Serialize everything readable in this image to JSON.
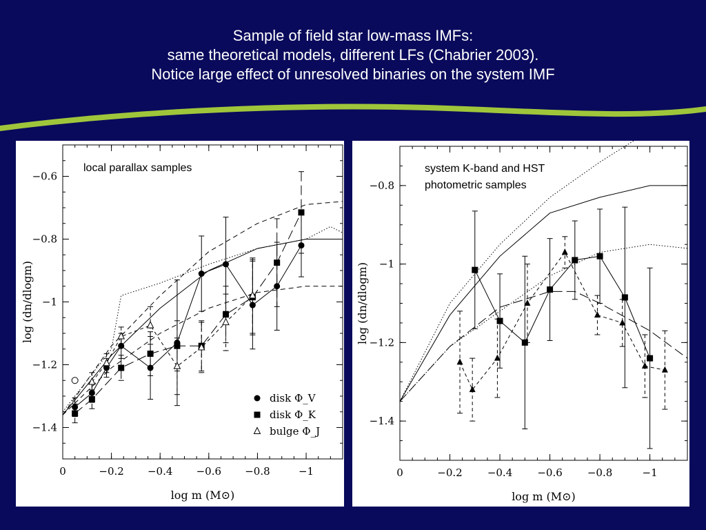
{
  "slide": {
    "title_lines": [
      "Sample of field star low-mass IMFs:",
      "same theoretical models, different LFs (Chabrier 2003).",
      "Notice large effect of unresolved binaries on the system IMF"
    ],
    "background_color": "#0a0a5c",
    "accent_color": "#9fc63b"
  },
  "chart_data": [
    {
      "type": "scatter",
      "title": "local parallax samples",
      "xlabel": "log m (M⊙)",
      "ylabel": "log (dn/dlogm)",
      "xlim": [
        0,
        -1.15
      ],
      "ylim": [
        -1.5,
        -0.5
      ],
      "xticks": [
        0,
        -0.2,
        -0.4,
        -0.6,
        -0.8,
        -1
      ],
      "xtick_labels": [
        "0",
        "−0.2",
        "−0.4",
        "−0.6",
        "−0.8",
        "−1"
      ],
      "yticks": [
        -1.4,
        -1.2,
        -1,
        -0.8,
        -0.6
      ],
      "ytick_labels": [
        "−1.4",
        "−1.2",
        "−1",
        "−0.8",
        "−0.6"
      ],
      "legend_position": "bottom-right",
      "series": [
        {
          "name": "disk Φ_V",
          "marker": "circle",
          "line": "solid",
          "x": [
            -0.05,
            -0.12,
            -0.18,
            -0.24,
            -0.36,
            -0.47,
            -0.57,
            -0.67,
            -0.78,
            -0.88,
            -0.98
          ],
          "y": [
            -1.335,
            -1.29,
            -1.21,
            -1.14,
            -1.21,
            -1.13,
            -0.91,
            -0.88,
            -1.01,
            -0.95,
            -0.82
          ],
          "yerr": [
            0.03,
            0.03,
            0.03,
            0.04,
            0.1,
            0.2,
            0.12,
            0.15,
            0.14,
            0.14,
            0.1
          ]
        },
        {
          "name": "disk Φ_K",
          "marker": "square",
          "line": "long-dash",
          "x": [
            -0.05,
            -0.12,
            -0.24,
            -0.36,
            -0.47,
            -0.57,
            -0.67,
            -0.78,
            -0.88,
            -0.98
          ],
          "y": [
            -1.355,
            -1.31,
            -1.21,
            -1.165,
            -1.14,
            -1.14,
            -1.04,
            -0.985,
            -0.875,
            -0.715
          ],
          "yerr": [
            0.03,
            0.03,
            0.04,
            0.07,
            0.08,
            0.08,
            0.09,
            0.12,
            0.14,
            0.13
          ]
        },
        {
          "name": "bulge Φ_J",
          "marker": "triangle-open",
          "line": "short-dash",
          "x": [
            -0.12,
            -0.18,
            -0.24,
            -0.36,
            -0.47,
            -0.57,
            -0.67,
            -0.78
          ],
          "y": [
            -1.255,
            -1.195,
            -1.11,
            -1.075,
            -1.205,
            -1.145,
            -1.065,
            -0.98
          ],
          "yerr": [
            0.03,
            0.03,
            0.03,
            0.06,
            0.09,
            0.08,
            0.09,
            0.12
          ]
        },
        {
          "name": "",
          "marker": "circle-open",
          "line": "none",
          "x": [
            -0.05
          ],
          "y": [
            -1.25
          ],
          "yerr": [
            0
          ]
        }
      ],
      "model_curves": [
        {
          "style": "solid",
          "x": [
            0,
            -0.2,
            -0.4,
            -0.6,
            -0.8,
            -1.0,
            -1.15
          ],
          "y": [
            -1.36,
            -1.17,
            -1.02,
            -0.9,
            -0.83,
            -0.8,
            -0.8
          ]
        },
        {
          "style": "dashed",
          "x": [
            0,
            -0.2,
            -0.4,
            -0.6,
            -0.8,
            -1.0,
            -1.15
          ],
          "y": [
            -1.36,
            -1.14,
            -0.98,
            -0.84,
            -0.75,
            -0.69,
            -0.68
          ]
        },
        {
          "style": "dashed",
          "x": [
            0,
            -0.2,
            -0.4,
            -0.6,
            -0.8,
            -1.0,
            -1.15
          ],
          "y": [
            -1.36,
            -1.21,
            -1.1,
            -1.02,
            -0.97,
            -0.95,
            -0.95
          ]
        },
        {
          "style": "dotted",
          "x": [
            0,
            -0.2,
            -0.24,
            -0.4,
            -0.6,
            -0.8,
            -1.0,
            -1.1,
            -1.15
          ],
          "y": [
            -1.35,
            -1.15,
            -0.98,
            -0.94,
            -0.88,
            -0.83,
            -0.8,
            -0.76,
            -0.78
          ]
        }
      ]
    },
    {
      "type": "scatter",
      "title": "system K-band  and HST photometric samples",
      "title_lines": [
        "system K-band  and HST",
        "photometric samples"
      ],
      "xlabel": "log m (M⊙)",
      "ylabel": "log (dn/dlogm)",
      "xlim": [
        0,
        -1.15
      ],
      "ylim": [
        -1.5,
        -0.7
      ],
      "xticks": [
        0,
        -0.2,
        -0.4,
        -0.6,
        -0.8,
        -1
      ],
      "xtick_labels": [
        "0",
        "−0.2",
        "−0.4",
        "−0.6",
        "−0.8",
        "−1"
      ],
      "yticks": [
        -1.4,
        -1.2,
        -1,
        -0.8
      ],
      "ytick_labels": [
        "−1.4",
        "−1.2",
        "−1",
        "−0.8"
      ],
      "series": [
        {
          "name": "",
          "marker": "square",
          "line": "solid",
          "x": [
            -0.3,
            -0.4,
            -0.5,
            -0.6,
            -0.7,
            -0.8,
            -0.9,
            -1.0
          ],
          "y": [
            -1.015,
            -1.145,
            -1.2,
            -1.065,
            -0.99,
            -0.98,
            -1.085,
            -1.24
          ],
          "yerr": [
            0.15,
            0.12,
            0.22,
            0.13,
            0.1,
            0.12,
            0.23,
            0.23
          ]
        },
        {
          "name": "",
          "marker": "triangle",
          "line": "short-dash",
          "x": [
            -0.24,
            -0.29,
            -0.39,
            -0.51,
            -0.66,
            -0.79,
            -0.89,
            -0.98,
            -1.06
          ],
          "y": [
            -1.25,
            -1.32,
            -1.24,
            -1.1,
            -0.97,
            -1.13,
            -1.15,
            -1.26,
            -1.27
          ],
          "yerr": [
            0.13,
            0.08,
            0.1,
            0.1,
            0.04,
            0.05,
            0.06,
            0.08,
            0.1
          ]
        }
      ],
      "model_curves": [
        {
          "style": "solid",
          "x": [
            0,
            -0.2,
            -0.4,
            -0.6,
            -0.8,
            -1.0,
            -1.15
          ],
          "y": [
            -1.35,
            -1.13,
            -0.98,
            -0.87,
            -0.83,
            -0.8,
            -0.8
          ]
        },
        {
          "style": "dotted",
          "x": [
            0,
            -0.2,
            -0.4,
            -0.6,
            -0.8,
            -1.0,
            -1.15
          ],
          "y": [
            -1.35,
            -1.1,
            -0.95,
            -0.83,
            -0.74,
            -0.66,
            -0.63
          ]
        },
        {
          "style": "dotted",
          "x": [
            0,
            -0.2,
            -0.4,
            -0.6,
            -0.8,
            -1.0,
            -1.15
          ],
          "y": [
            -1.35,
            -1.21,
            -1.12,
            -1.03,
            -0.97,
            -0.95,
            -0.96
          ]
        },
        {
          "style": "long-dash",
          "x": [
            0,
            -0.2,
            -0.4,
            -0.6,
            -0.7,
            -0.8,
            -1.0,
            -1.15
          ],
          "y": [
            -1.35,
            -1.21,
            -1.11,
            -1.07,
            -1.07,
            -1.1,
            -1.17,
            -1.24
          ]
        }
      ]
    }
  ]
}
